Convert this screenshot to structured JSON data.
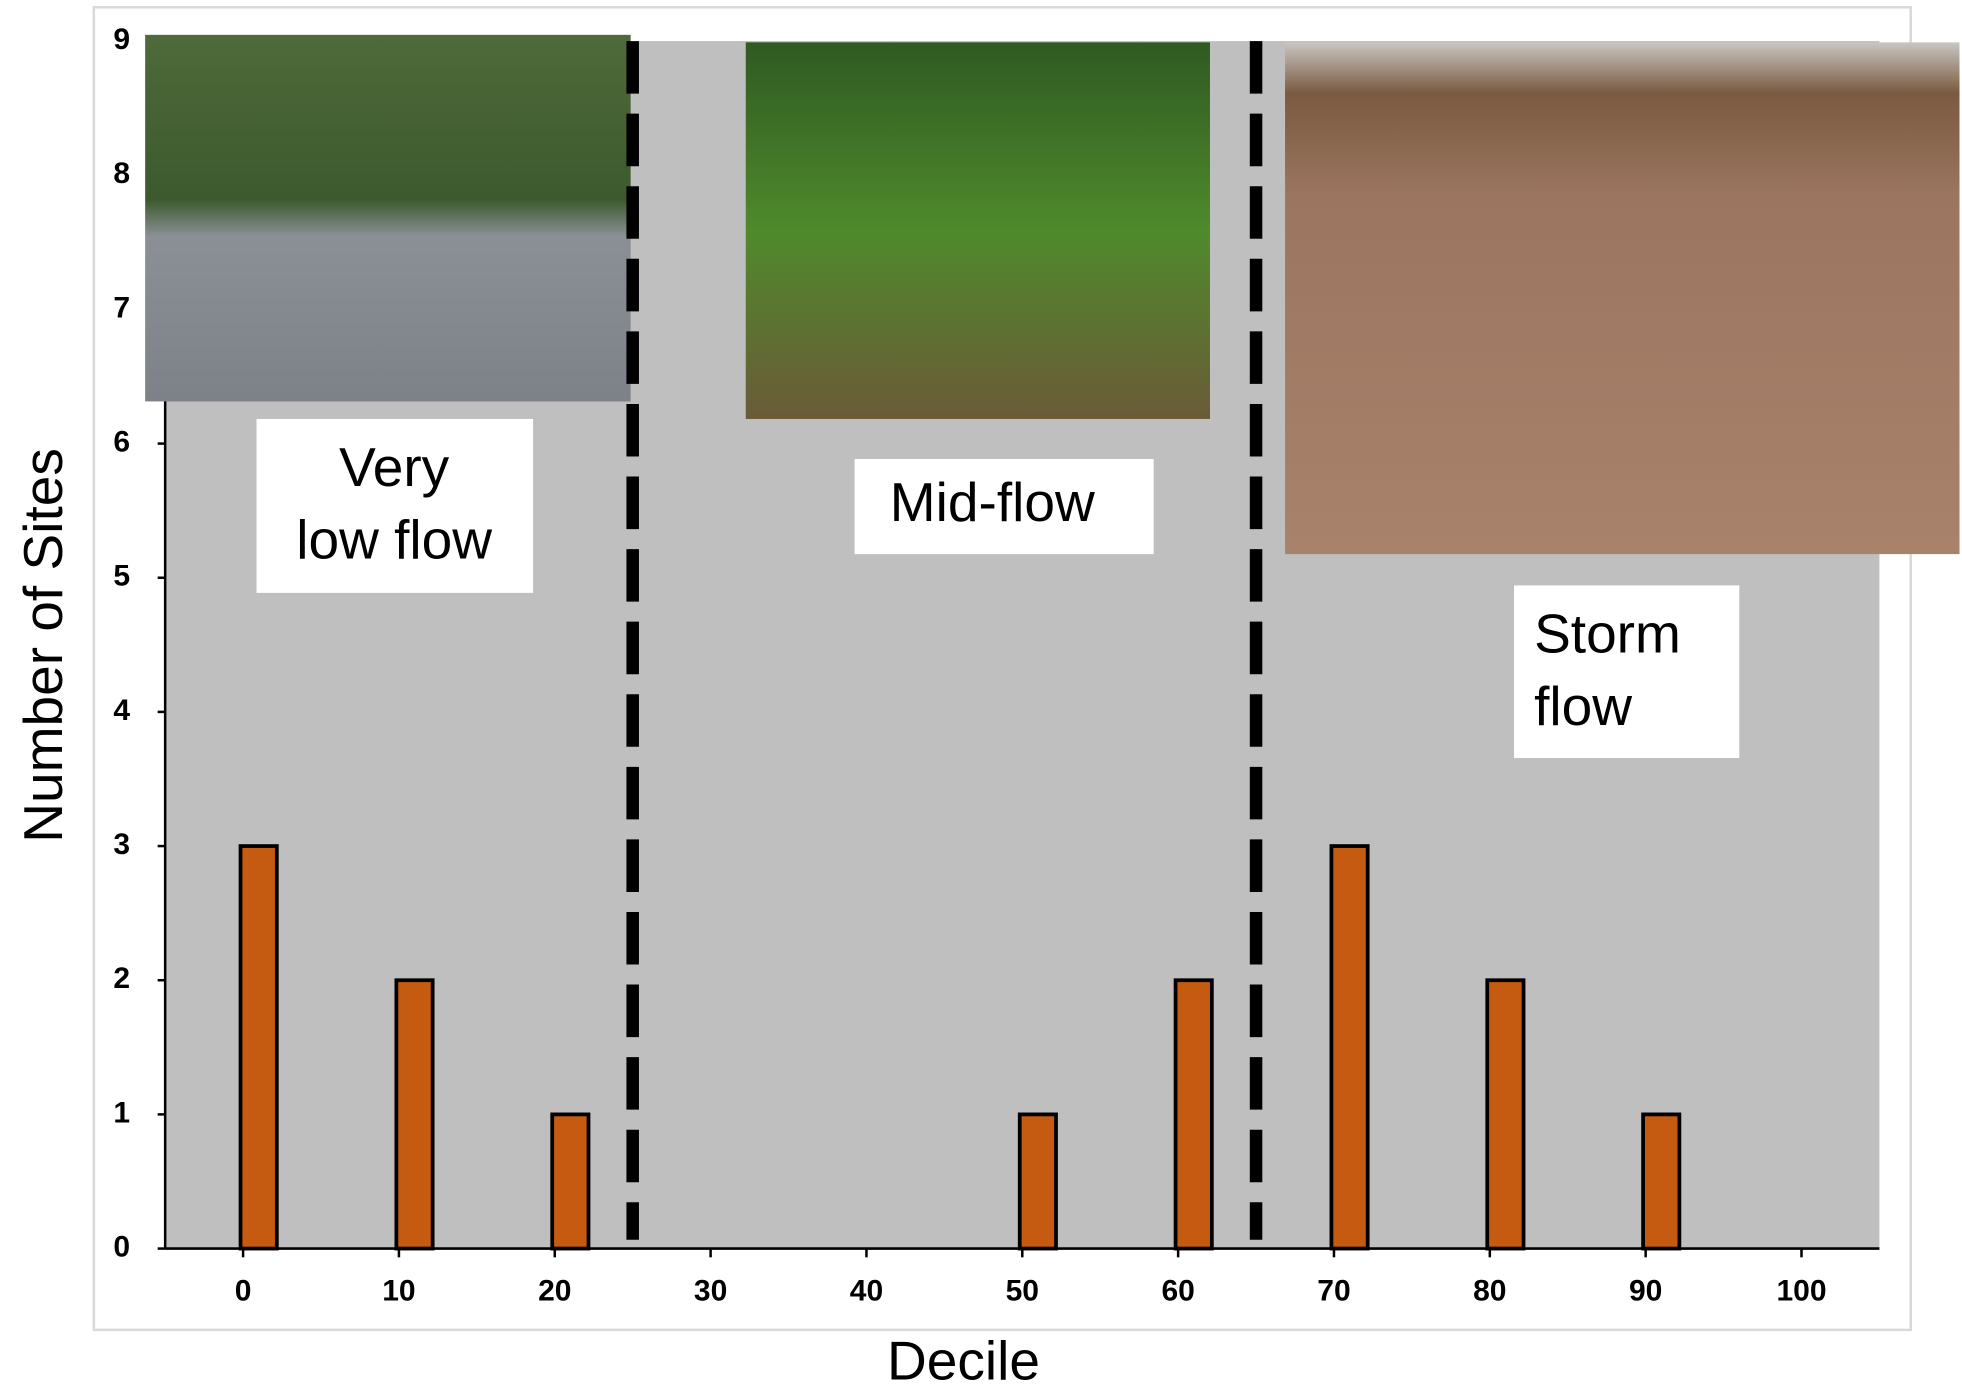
{
  "chart_data": {
    "type": "bar",
    "x": [
      1,
      11,
      21,
      51,
      61,
      71,
      81,
      91
    ],
    "values": [
      3,
      2,
      1,
      1,
      2,
      3,
      2,
      1
    ],
    "color": "#c55a11",
    "xlim": [
      -5,
      105
    ],
    "xticks": [
      0,
      10,
      20,
      30,
      40,
      50,
      60,
      70,
      80,
      90,
      100
    ],
    "ylim": [
      0,
      9
    ],
    "yticks": [
      0,
      1,
      2,
      3,
      4,
      5,
      6,
      7,
      8,
      9
    ],
    "xlabel": "Decile",
    "ylabel": "Number of Sites",
    "vlines": [
      25,
      65
    ],
    "annotations": [
      {
        "lines": [
          "Very",
          "low flow"
        ]
      },
      {
        "lines": [
          "Mid-flow"
        ]
      },
      {
        "lines": [
          "Storm",
          "flow"
        ]
      }
    ]
  }
}
